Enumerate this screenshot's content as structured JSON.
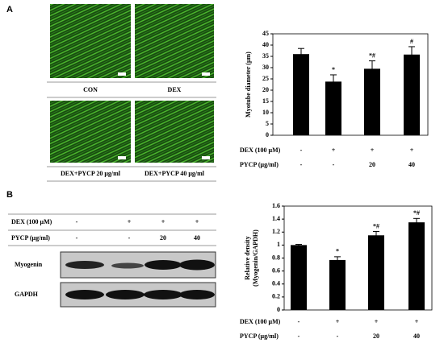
{
  "panel_a": {
    "label": "A",
    "captions": [
      "CON",
      "DEX",
      "DEX+PYCP 20 μg/ml",
      "DEX+PYCP 40 μg/ml"
    ]
  },
  "panel_b": {
    "label": "B",
    "conditions": [
      {
        "name": "DEX (100 μM)",
        "values": [
          "-",
          "+",
          "+",
          "+"
        ]
      },
      {
        "name": "PYCP (μg/ml)",
        "values": [
          "-",
          "-",
          "20",
          "40"
        ]
      }
    ],
    "bands": [
      "Myogenin",
      "GAPDH"
    ]
  },
  "chart_data": [
    {
      "type": "bar",
      "y_label": [
        "Myotube diameter (μm)"
      ],
      "color": "#000000",
      "values": [
        36,
        23.8,
        29.5,
        35.8
      ],
      "errors": [
        2.5,
        3,
        3.5,
        3.5
      ],
      "annotations": [
        null,
        "*",
        "*#",
        "#"
      ],
      "conditions": [
        {
          "name": "DEX (100 μM)",
          "values": [
            "-",
            "+",
            "+",
            "+"
          ]
        },
        {
          "name": "PYCP (μg/ml)",
          "values": [
            "-",
            "-",
            "20",
            "40"
          ]
        }
      ],
      "ylim": [
        0,
        45
      ],
      "yticks": [
        0,
        5,
        10,
        15,
        20,
        25,
        30,
        35,
        40,
        45
      ]
    },
    {
      "type": "bar",
      "y_label": [
        "Relative density",
        "(Myogenin/GAPDH)"
      ],
      "color": "#000000",
      "values": [
        1.0,
        0.77,
        1.15,
        1.35
      ],
      "errors": [
        0.01,
        0.05,
        0.06,
        0.06
      ],
      "annotations": [
        null,
        "*",
        "*#",
        "*#"
      ],
      "conditions": [
        {
          "name": "DEX (100 μM)",
          "values": [
            "-",
            "+",
            "+",
            "+"
          ]
        },
        {
          "name": "PYCP (μg/ml)",
          "values": [
            "-",
            "-",
            "20",
            "40"
          ]
        }
      ],
      "ylim": [
        0,
        1.6
      ],
      "yticks": [
        0,
        0.2,
        0.4,
        0.6,
        0.8,
        1,
        1.2,
        1.4,
        1.6
      ]
    }
  ]
}
